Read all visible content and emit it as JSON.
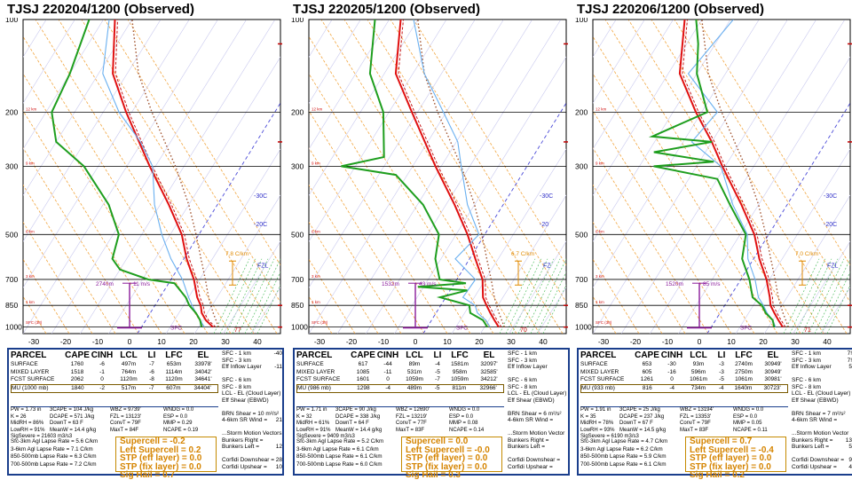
{
  "chart_data": [
    {
      "type": "skew-t",
      "title": "TJSJ  220204/1200  (Observed)",
      "y_ticks": [
        "100",
        "200",
        "300",
        "500",
        "700",
        "850",
        "1000"
      ],
      "x_ticks": [
        "-30",
        "-20",
        "-10",
        "0",
        "10",
        "20",
        "30",
        "40"
      ],
      "temp_labels": [
        "-30C",
        "-20C",
        "FZL"
      ],
      "wind_label": "2740m",
      "storm_label": "11 m/s",
      "sfc_label": "SFC",
      "cape_ann": "7.8 C/km",
      "surf_temp": "77",
      "srh_label": "SRH(m2/s",
      "table": {
        "header": [
          "PARCEL",
          "CAPE",
          "CINH",
          "LCL",
          "LI",
          "LFC",
          "EL"
        ],
        "rows": [
          [
            "SURFACE",
            "1760",
            "-6",
            "497m",
            "-7",
            "653m",
            "33978'"
          ],
          [
            "MIXED LAYER",
            "1518",
            "-1",
            "764m",
            "-6",
            "1114m",
            "34042'"
          ],
          [
            "FCST SURFACE",
            "2062",
            "0",
            "1120m",
            "-8",
            "1120m",
            "34641'"
          ],
          [
            "MU    (1000 mb)",
            "1840",
            "-2",
            "517m",
            "-7",
            "607m",
            "34404'"
          ]
        ],
        "mid": [
          [
            "PW = 1.73 in",
            "3CAPE = 104 J/kg",
            "WBZ = 9739'",
            "WNDG = 0.0"
          ],
          [
            "K = 26",
            "DCAPE = 571 J/kg",
            "FZL = 13123'",
            "ESP = 0.0"
          ],
          [
            "MidRH = 86%",
            "DownT = 63 F",
            "ConvT = 79F",
            "MMP = 0.29"
          ],
          [
            "LowRH = 91%",
            "MeanW = 14.4 g/kg",
            "MaxT = 84F",
            "NCAPE = 0.19"
          ],
          [
            "SigSevere = 21603 m3/s3",
            "",
            "",
            ""
          ]
        ],
        "lapse": [
          "Sfc-3km Agl Lapse Rate = 5.6 C/km",
          "3-6km Agl Lapse Rate = 7.1 C/km",
          "850-500mb Lapse Rate = 6.3 C/km",
          "700-500mb Lapse Rate = 7.2 C/km"
        ],
        "params": [
          "Supercell = -0.2",
          "Left Supercell = 0.2",
          "STP (eff layer) = 0.0",
          "STP (fix layer) = 0.0",
          "Sig Hail = 0.7"
        ],
        "right": [
          "SFC - 1 km",
          "SFC - 3 km",
          "Eff Inflow Layer",
          "",
          "SFC - 6 km",
          "SFC - 8 km",
          "LCL - EL (Cloud Layer)",
          "Eff Shear (EBWD)",
          "",
          "BRN Shear = 10 m²/s²",
          "4-6km SR Wind =",
          "",
          "...Storm Motion Vectors",
          "Bunkers Right =",
          "Bunkers Left =",
          "",
          "Corfidi Downshear =",
          "Corfidi Upshear ="
        ],
        "right_vals": [
          "-40",
          "",
          "-11",
          "",
          "",
          "",
          "",
          "",
          "",
          "",
          "21",
          "",
          "",
          "",
          "12",
          "",
          "28",
          "10"
        ]
      }
    },
    {
      "type": "skew-t",
      "title": "TJSJ  220205/1200  (Observed)",
      "y_ticks": [
        "100",
        "200",
        "300",
        "500",
        "700",
        "850",
        "1000"
      ],
      "x_ticks": [
        "-30",
        "-20",
        "-10",
        "0",
        "10",
        "20",
        "30",
        "40"
      ],
      "temp_labels": [
        "-30C",
        "-20",
        "FZ"
      ],
      "wind_label": "1532m",
      "storm_label": "43 m/s",
      "sfc_label": "SFC",
      "cape_ann": "6.7 C/km",
      "surf_temp": "70",
      "srh_label": "SRH(m2/s",
      "table": {
        "header": [
          "PARCEL",
          "CAPE",
          "CINH",
          "LCL",
          "LI",
          "LFC",
          "EL"
        ],
        "rows": [
          [
            "SURFACE",
            "617",
            "-44",
            "89m",
            "-4",
            "1581m",
            "32097'"
          ],
          [
            "MIXED LAYER",
            "1085",
            "-11",
            "531m",
            "-5",
            "958m",
            "32585'"
          ],
          [
            "FCST SURFACE",
            "1601",
            "0",
            "1059m",
            "-7",
            "1059m",
            "34212'"
          ],
          [
            "MU    (986 mb)",
            "1298",
            "-4",
            "489m",
            "-5",
            "811m",
            "32966'"
          ]
        ],
        "mid": [
          [
            "PW = 1.71 in",
            "3CAPE = 90 J/kg",
            "WBZ = 12690'",
            "WNDG = 0.0"
          ],
          [
            "K = 32",
            "DCAPE = 338 J/kg",
            "FZL = 13219'",
            "ESP = 0.0"
          ],
          [
            "MidRH = 61%",
            "DownT = 64 F",
            "ConvT = 77F",
            "MMP = 0.08"
          ],
          [
            "LowRH = 91%",
            "MeanW = 14.4 g/kg",
            "MaxT = 83F",
            "NCAPE = 0.14"
          ],
          [
            "SigSevere = 9409 m3/s3",
            "",
            "",
            ""
          ]
        ],
        "lapse": [
          "Sfc-3km Agl Lapse Rate = 5.2 C/km",
          "3-6km Agl Lapse Rate = 6.1 C/km",
          "850-500mb Lapse Rate = 6.1 C/km",
          "700-500mb Lapse Rate = 6.0 C/km"
        ],
        "params": [
          "Supercell = 0.0",
          "Left Supercell = -0.0",
          "STP (eff layer) = 0.0",
          "STP (fix layer) = 0.0",
          "Sig Hail = 0.3"
        ],
        "right": [
          "SFC - 1 km",
          "SFC - 3 km",
          "Eff Inflow Layer",
          "",
          "SFC - 6 km",
          "SFC - 8 km",
          "LCL - EL (Cloud Layer)",
          "Eff Shear (EBWD)",
          "",
          "BRN Shear = 6 m²/s²",
          "4-6km SR Wind =",
          "",
          "...Storm Motion Vector",
          "Bunkers Right =",
          "Bunkers Left =",
          "",
          "Corfidi Downshear =",
          "Corfidi Upshear ="
        ],
        "right_vals": [
          "",
          "",
          "",
          "",
          "",
          "",
          "",
          "",
          "",
          "",
          "",
          "",
          "",
          "",
          "",
          "",
          "",
          ""
        ]
      }
    },
    {
      "type": "skew-t",
      "title": "TJSJ  220206/1200  (Observed)",
      "y_ticks": [
        "100",
        "200",
        "300",
        "500",
        "700",
        "850",
        "1000"
      ],
      "x_ticks": [
        "-30",
        "-20",
        "-10",
        "0",
        "10",
        "20",
        "30",
        "40"
      ],
      "temp_labels": [
        "-30C",
        "-20C",
        "FZL"
      ],
      "wind_label": "1520m",
      "storm_label": "85 m/s",
      "sfc_label": "SFC",
      "cape_ann": "7.0 C/km",
      "surf_temp": "71",
      "srh_label": "SRH(m2/s",
      "table": {
        "header": [
          "PARCEL",
          "CAPE",
          "CINH",
          "LCL",
          "LI",
          "LFC",
          "EL"
        ],
        "rows": [
          [
            "SURFACE",
            "653",
            "-30",
            "93m",
            "-3",
            "2740m",
            "30949'"
          ],
          [
            "MIXED LAYER",
            "605",
            "-16",
            "596m",
            "-3",
            "2750m",
            "30949'"
          ],
          [
            "FCST SURFACE",
            "1261",
            "0",
            "1061m",
            "-5",
            "1061m",
            "30981'"
          ],
          [
            "MU    (933 mb)",
            "816",
            "-4",
            "734m",
            "-4",
            "1640m",
            "30723'"
          ]
        ],
        "mid": [
          [
            "PW = 1.91 in",
            "3CAPE = 25 J/kg",
            "WBZ = 13194'",
            "WNDG = 0.0"
          ],
          [
            "K = 35",
            "DCAPE = 237 J/kg",
            "FZL = 13353'",
            "ESP = 0.0"
          ],
          [
            "MidRH = 78%",
            "DownT = 67 F",
            "ConvT = 79F",
            "MMP = 0.05"
          ],
          [
            "LowRH = 93%",
            "MeanW = 14.5 g/kg",
            "MaxT = 83F",
            "NCAPE = 0.11"
          ],
          [
            "SigSevere = 6190 m3/s3",
            "",
            "",
            ""
          ]
        ],
        "lapse": [
          "Sfc-3km Agl Lapse Rate = 4.7 C/km",
          "3-6km Agl Lapse Rate = 6.2 C/km",
          "850-500mb Lapse Rate = 5.9 C/km",
          "700-500mb Lapse Rate = 6.1 C/km"
        ],
        "params": [
          "Supercell = 0.7",
          "Left Supercell = -0.4",
          "STP (eff layer) = 0.0",
          "STP (fix layer) = 0.0",
          "Sig Hail = 0.2"
        ],
        "right": [
          "SFC - 1 km",
          "SFC - 3 km",
          "Eff Inflow Layer",
          "",
          "SFC - 6 km",
          "SFC - 8 km",
          "LCL - EL (Cloud Layer)",
          "Eff Shear (EBWD)",
          "",
          "BRN Shear = 7 m²/s²",
          "4-6km SR Wind =",
          "",
          "...Storm Motion Vector",
          "Bunkers Right =",
          "Bunkers Left =",
          "",
          "Corfidi Downshear =",
          "Corfidi Upshear ="
        ],
        "right_vals": [
          "7!",
          "7!",
          "5",
          "",
          "",
          "",
          "",
          "",
          "",
          "",
          "",
          "",
          "",
          "13",
          "5",
          "",
          "9",
          "4"
        ]
      }
    }
  ]
}
